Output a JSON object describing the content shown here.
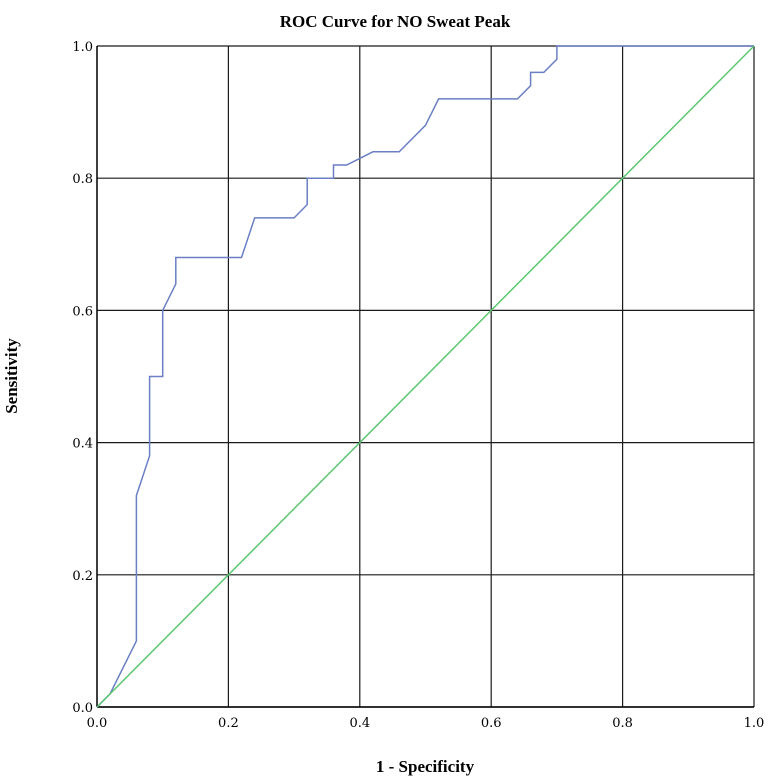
{
  "chart_data": {
    "type": "line",
    "title": "ROC Curve for NO Sweat Peak",
    "xlabel": "1 - Specificity",
    "ylabel": "Sensitivity",
    "xlim": [
      0,
      1
    ],
    "ylim": [
      0,
      1
    ],
    "x_ticks": [
      "0.0",
      "0.2",
      "0.4",
      "0.6",
      "0.8",
      "1.0"
    ],
    "y_ticks": [
      "0.0",
      "0.2",
      "0.4",
      "0.6",
      "0.8",
      "1.0"
    ],
    "grid": true,
    "legend": "none",
    "series": [
      {
        "color": "#6a7fc4",
        "points": [
          [
            0.0,
            0.0
          ],
          [
            0.02,
            0.02
          ],
          [
            0.06,
            0.1
          ],
          [
            0.06,
            0.32
          ],
          [
            0.08,
            0.38
          ],
          [
            0.08,
            0.5
          ],
          [
            0.1,
            0.5
          ],
          [
            0.1,
            0.6
          ],
          [
            0.12,
            0.64
          ],
          [
            0.12,
            0.68
          ],
          [
            0.22,
            0.68
          ],
          [
            0.24,
            0.74
          ],
          [
            0.3,
            0.74
          ],
          [
            0.32,
            0.76
          ],
          [
            0.32,
            0.8
          ],
          [
            0.36,
            0.8
          ],
          [
            0.36,
            0.82
          ],
          [
            0.38,
            0.82
          ],
          [
            0.42,
            0.84
          ],
          [
            0.46,
            0.84
          ],
          [
            0.5,
            0.88
          ],
          [
            0.52,
            0.92
          ],
          [
            0.64,
            0.92
          ],
          [
            0.66,
            0.94
          ],
          [
            0.66,
            0.96
          ],
          [
            0.68,
            0.96
          ],
          [
            0.7,
            0.98
          ],
          [
            0.7,
            1.0
          ],
          [
            1.0,
            1.0
          ]
        ]
      },
      {
        "color": "#5cc770",
        "points": [
          [
            0,
            0
          ],
          [
            1,
            1
          ]
        ]
      }
    ]
  }
}
